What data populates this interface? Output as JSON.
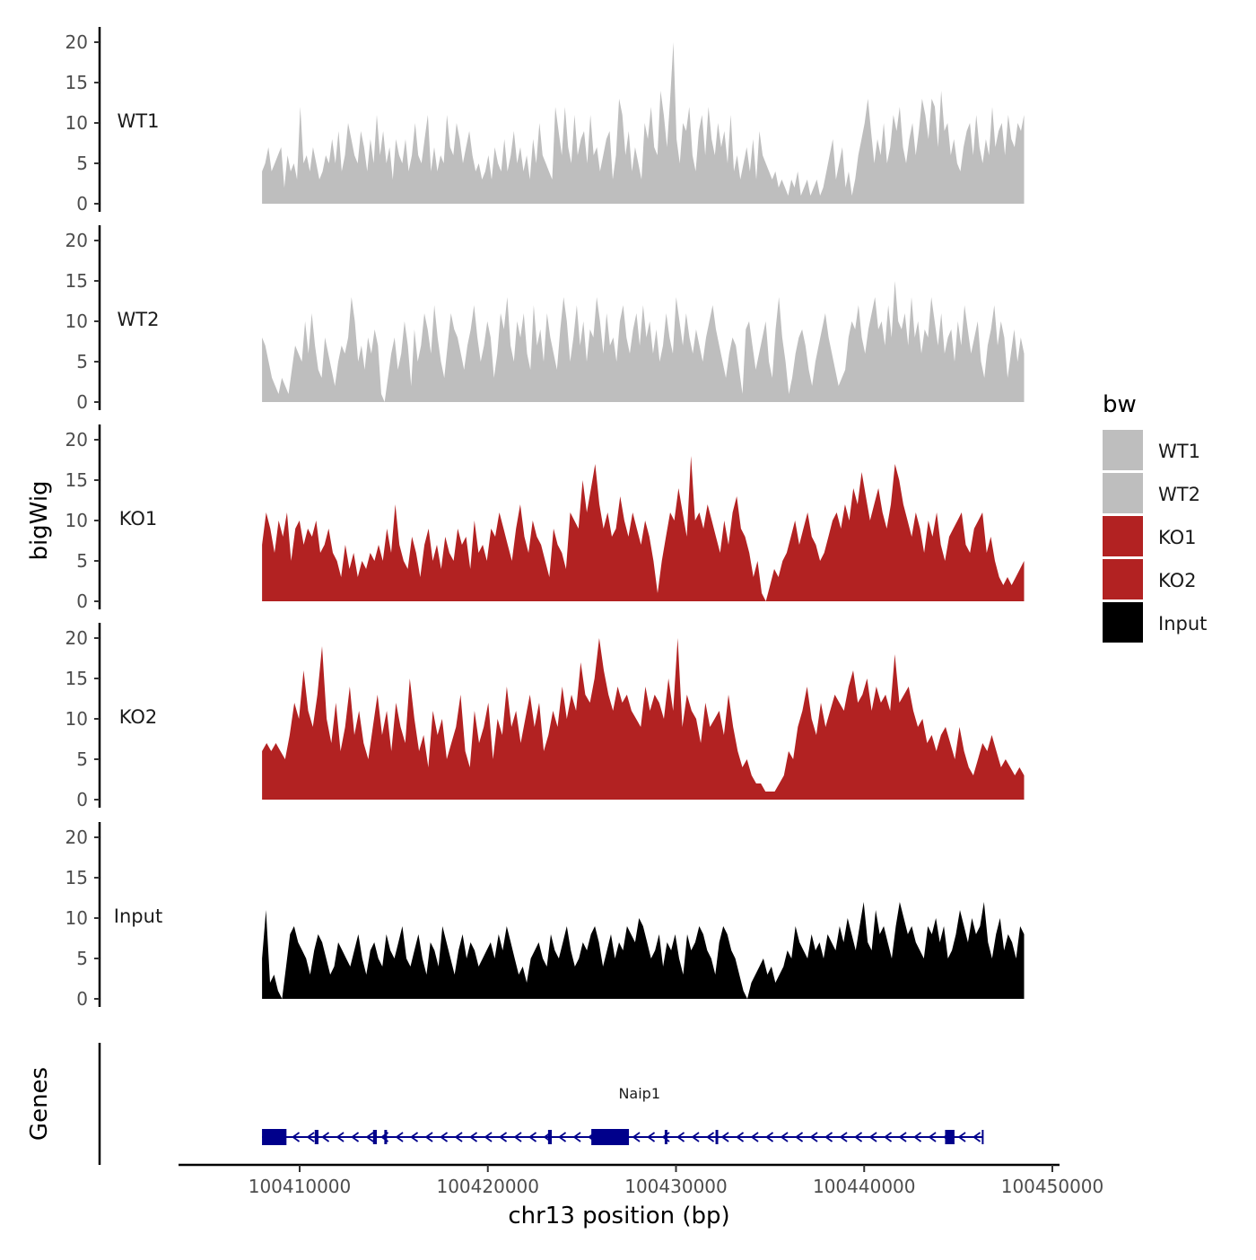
{
  "chart_data": {
    "type": "area",
    "chromosome": "chr13",
    "xlabel": "chr13 position (bp)",
    "ylabel": "bigWig",
    "genes_label": "Genes",
    "xlim": [
      100406000,
      100450000
    ],
    "x_ticks": [
      100410000,
      100420000,
      100430000,
      100440000,
      100450000
    ],
    "x_tick_labels": [
      "100410000",
      "100420000",
      "100430000",
      "100440000",
      "100450000"
    ],
    "ylim": [
      0,
      22
    ],
    "y_ticks": [
      0,
      5,
      10,
      15,
      20
    ],
    "y_tick_labels": [
      "0",
      "5",
      "10",
      "15",
      "20"
    ],
    "legend": {
      "title": "bw",
      "entries": [
        {
          "label": "WT1",
          "color": "#bebebe"
        },
        {
          "label": "WT2",
          "color": "#bebebe"
        },
        {
          "label": "KO1",
          "color": "#b22222"
        },
        {
          "label": "KO2",
          "color": "#b22222"
        },
        {
          "label": "Input",
          "color": "#000000"
        }
      ]
    },
    "tracks": [
      {
        "name": "WT1",
        "color": "#bebebe",
        "x_start": 100408000,
        "x_end": 100448500,
        "values": [
          4,
          5,
          7,
          4,
          5,
          6,
          7,
          2,
          6,
          4,
          5,
          3,
          12,
          5,
          6,
          4,
          7,
          5,
          3,
          4,
          6,
          5,
          8,
          5,
          9,
          4,
          6,
          10,
          8,
          6,
          5,
          9,
          7,
          4,
          8,
          5,
          11,
          6,
          9,
          5,
          7,
          3,
          8,
          6,
          5,
          8,
          4,
          6,
          10,
          6,
          5,
          8,
          11,
          4,
          7,
          4,
          6,
          5,
          11,
          7,
          6,
          10,
          8,
          5,
          7,
          9,
          6,
          4,
          5,
          3,
          4,
          6,
          3,
          7,
          5,
          4,
          8,
          4,
          6,
          9,
          5,
          7,
          4,
          6,
          3,
          8,
          5,
          10,
          6,
          5,
          4,
          3,
          12,
          9,
          6,
          12,
          7,
          5,
          11,
          6,
          8,
          9,
          5,
          11,
          6,
          7,
          4,
          6,
          8,
          9,
          3,
          6,
          13,
          11,
          6,
          9,
          4,
          7,
          5,
          3,
          10,
          8,
          12,
          7,
          6,
          14,
          11,
          7,
          13,
          20,
          8,
          5,
          10,
          9,
          12,
          6,
          4,
          9,
          11,
          6,
          12,
          8,
          6,
          10,
          7,
          9,
          5,
          11,
          4,
          6,
          3,
          5,
          7,
          4,
          8,
          3,
          9,
          6,
          5,
          4,
          3,
          4,
          2,
          3,
          2,
          1,
          3,
          2,
          4,
          1,
          2,
          3,
          1,
          2,
          3,
          1,
          2,
          4,
          6,
          8,
          3,
          5,
          7,
          2,
          4,
          1,
          3,
          6,
          8,
          10,
          13,
          9,
          5,
          8,
          6,
          10,
          5,
          7,
          11,
          9,
          12,
          7,
          5,
          8,
          10,
          6,
          9,
          13,
          11,
          8,
          13,
          12,
          7,
          14,
          9,
          10,
          6,
          8,
          5,
          4,
          7,
          9,
          10,
          6,
          11,
          7,
          5,
          8,
          6,
          12,
          7,
          9,
          10,
          6,
          11,
          8,
          7,
          10,
          9,
          11
        ]
      },
      {
        "name": "WT2",
        "color": "#bebebe",
        "x_start": 100408000,
        "x_end": 100448500,
        "values": [
          8,
          7,
          5,
          3,
          2,
          1,
          3,
          2,
          1,
          4,
          7,
          6,
          5,
          10,
          6,
          11,
          7,
          4,
          3,
          8,
          6,
          4,
          2,
          5,
          7,
          6,
          8,
          13,
          10,
          5,
          7,
          4,
          8,
          6,
          9,
          7,
          1,
          0,
          3,
          6,
          8,
          4,
          6,
          10,
          7,
          2,
          9,
          5,
          7,
          11,
          9,
          6,
          12,
          8,
          5,
          3,
          7,
          11,
          9,
          8,
          6,
          4,
          7,
          9,
          12,
          8,
          5,
          7,
          10,
          8,
          3,
          6,
          11,
          9,
          13,
          7,
          5,
          10,
          8,
          11,
          6,
          4,
          12,
          7,
          9,
          5,
          11,
          8,
          6,
          4,
          9,
          13,
          10,
          5,
          8,
          12,
          7,
          10,
          5,
          9,
          8,
          13,
          10,
          6,
          11,
          7,
          8,
          5,
          10,
          12,
          8,
          6,
          9,
          11,
          7,
          12,
          8,
          10,
          6,
          9,
          5,
          7,
          11,
          8,
          6,
          13,
          10,
          7,
          11,
          8,
          6,
          9,
          7,
          5,
          8,
          10,
          12,
          9,
          7,
          5,
          3,
          6,
          8,
          7,
          4,
          1,
          9,
          10,
          7,
          4,
          6,
          8,
          10,
          5,
          3,
          9,
          13,
          8,
          5,
          1,
          3,
          6,
          8,
          9,
          7,
          4,
          2,
          5,
          7,
          9,
          11,
          8,
          6,
          4,
          2,
          3,
          4,
          8,
          10,
          9,
          12,
          8,
          6,
          9,
          11,
          13,
          9,
          10,
          7,
          12,
          8,
          15,
          10,
          9,
          11,
          7,
          13,
          8,
          10,
          6,
          9,
          8,
          13,
          10,
          7,
          11,
          6,
          8,
          9,
          5,
          10,
          7,
          12,
          9,
          6,
          8,
          10,
          5,
          3,
          7,
          9,
          12,
          7,
          10,
          8,
          3,
          6,
          9,
          5,
          8,
          6
        ]
      },
      {
        "name": "KO1",
        "color": "#b22222",
        "x_start": 100408000,
        "x_end": 100448500,
        "values": [
          7,
          11,
          9,
          6,
          10,
          8,
          11,
          5,
          9,
          10,
          7,
          9,
          8,
          10,
          6,
          7,
          9,
          6,
          5,
          3,
          7,
          4,
          6,
          3,
          5,
          4,
          6,
          5,
          7,
          5,
          9,
          6,
          12,
          7,
          5,
          4,
          8,
          6,
          3,
          7,
          9,
          5,
          7,
          4,
          8,
          6,
          5,
          9,
          7,
          8,
          4,
          10,
          6,
          7,
          5,
          9,
          8,
          11,
          9,
          7,
          5,
          9,
          12,
          8,
          6,
          10,
          8,
          7,
          5,
          3,
          9,
          7,
          6,
          4,
          11,
          10,
          9,
          15,
          11,
          14,
          17,
          12,
          9,
          11,
          8,
          9,
          13,
          10,
          8,
          11,
          9,
          7,
          10,
          8,
          5,
          1,
          5,
          8,
          11,
          10,
          14,
          11,
          8,
          18,
          10,
          11,
          9,
          12,
          10,
          8,
          6,
          10,
          7,
          11,
          13,
          9,
          8,
          6,
          3,
          5,
          1,
          0,
          2,
          4,
          3,
          5,
          6,
          8,
          10,
          7,
          9,
          11,
          8,
          7,
          5,
          6,
          8,
          10,
          11,
          9,
          12,
          10,
          14,
          12,
          16,
          13,
          10,
          12,
          14,
          11,
          9,
          12,
          17,
          15,
          12,
          10,
          8,
          11,
          9,
          6,
          10,
          8,
          11,
          7,
          5,
          8,
          9,
          10,
          11,
          7,
          6,
          9,
          10,
          11,
          6,
          8,
          5,
          3,
          2,
          3,
          2,
          3,
          4,
          5
        ]
      },
      {
        "name": "KO2",
        "color": "#b22222",
        "x_start": 100408000,
        "x_end": 100448500,
        "values": [
          6,
          7,
          6,
          7,
          6,
          5,
          8,
          12,
          10,
          16,
          11,
          9,
          13,
          19,
          10,
          7,
          12,
          6,
          9,
          14,
          8,
          11,
          7,
          5,
          9,
          13,
          8,
          11,
          6,
          12,
          9,
          7,
          15,
          10,
          6,
          8,
          4,
          11,
          8,
          10,
          5,
          7,
          9,
          13,
          6,
          4,
          11,
          7,
          9,
          12,
          5,
          10,
          8,
          14,
          9,
          11,
          7,
          10,
          13,
          9,
          12,
          6,
          8,
          11,
          9,
          14,
          10,
          13,
          11,
          17,
          13,
          12,
          15,
          20,
          16,
          13,
          11,
          14,
          12,
          13,
          11,
          10,
          9,
          14,
          11,
          13,
          12,
          10,
          15,
          11,
          20,
          9,
          13,
          11,
          10,
          7,
          12,
          9,
          10,
          11,
          8,
          13,
          9,
          6,
          4,
          5,
          3,
          2,
          2,
          1,
          1,
          1,
          2,
          3,
          6,
          5,
          9,
          11,
          14,
          10,
          8,
          12,
          9,
          11,
          13,
          12,
          11,
          14,
          16,
          12,
          13,
          15,
          11,
          14,
          12,
          13,
          11,
          18,
          12,
          13,
          14,
          11,
          9,
          10,
          7,
          8,
          6,
          8,
          9,
          7,
          5,
          9,
          6,
          4,
          3,
          5,
          7,
          6,
          8,
          6,
          4,
          5,
          4,
          3,
          4,
          3
        ]
      },
      {
        "name": "Input",
        "color": "#000000",
        "x_start": 100408000,
        "x_end": 100448500,
        "values": [
          5,
          11,
          2,
          3,
          1,
          0,
          4,
          8,
          9,
          7,
          6,
          5,
          3,
          6,
          8,
          7,
          5,
          3,
          4,
          7,
          6,
          5,
          4,
          6,
          8,
          5,
          3,
          6,
          7,
          5,
          4,
          8,
          6,
          5,
          7,
          9,
          5,
          4,
          6,
          8,
          5,
          3,
          7,
          6,
          4,
          9,
          7,
          5,
          3,
          6,
          8,
          5,
          7,
          6,
          4,
          5,
          6,
          7,
          5,
          8,
          6,
          9,
          7,
          5,
          3,
          4,
          2,
          5,
          6,
          7,
          5,
          4,
          8,
          6,
          5,
          7,
          9,
          6,
          4,
          5,
          7,
          6,
          8,
          9,
          7,
          4,
          6,
          8,
          5,
          7,
          6,
          9,
          8,
          7,
          10,
          9,
          7,
          5,
          6,
          8,
          4,
          7,
          6,
          8,
          5,
          3,
          8,
          6,
          7,
          9,
          8,
          6,
          5,
          3,
          7,
          9,
          8,
          6,
          5,
          3,
          1,
          0,
          2,
          3,
          4,
          5,
          3,
          4,
          2,
          3,
          4,
          6,
          5,
          9,
          7,
          6,
          5,
          8,
          6,
          7,
          5,
          8,
          7,
          6,
          9,
          7,
          10,
          8,
          6,
          9,
          12,
          7,
          6,
          11,
          8,
          9,
          7,
          5,
          9,
          12,
          10,
          8,
          9,
          7,
          6,
          5,
          9,
          8,
          10,
          7,
          9,
          5,
          6,
          8,
          11,
          9,
          7,
          10,
          8,
          9,
          12,
          7,
          5,
          8,
          10,
          6,
          8,
          7,
          5,
          9,
          8
        ]
      }
    ],
    "genes": [
      {
        "name": "Naip1",
        "strand": "-",
        "start": 100408000,
        "end": 100446300,
        "exons": [
          [
            100408000,
            100409300
          ],
          [
            100410800,
            100411000
          ],
          [
            100413900,
            100414100
          ],
          [
            100414500,
            100414600
          ],
          [
            100423200,
            100423400
          ],
          [
            100425500,
            100427500
          ],
          [
            100429400,
            100429500
          ],
          [
            100432100,
            100432200
          ],
          [
            100444300,
            100444800
          ]
        ]
      }
    ]
  }
}
